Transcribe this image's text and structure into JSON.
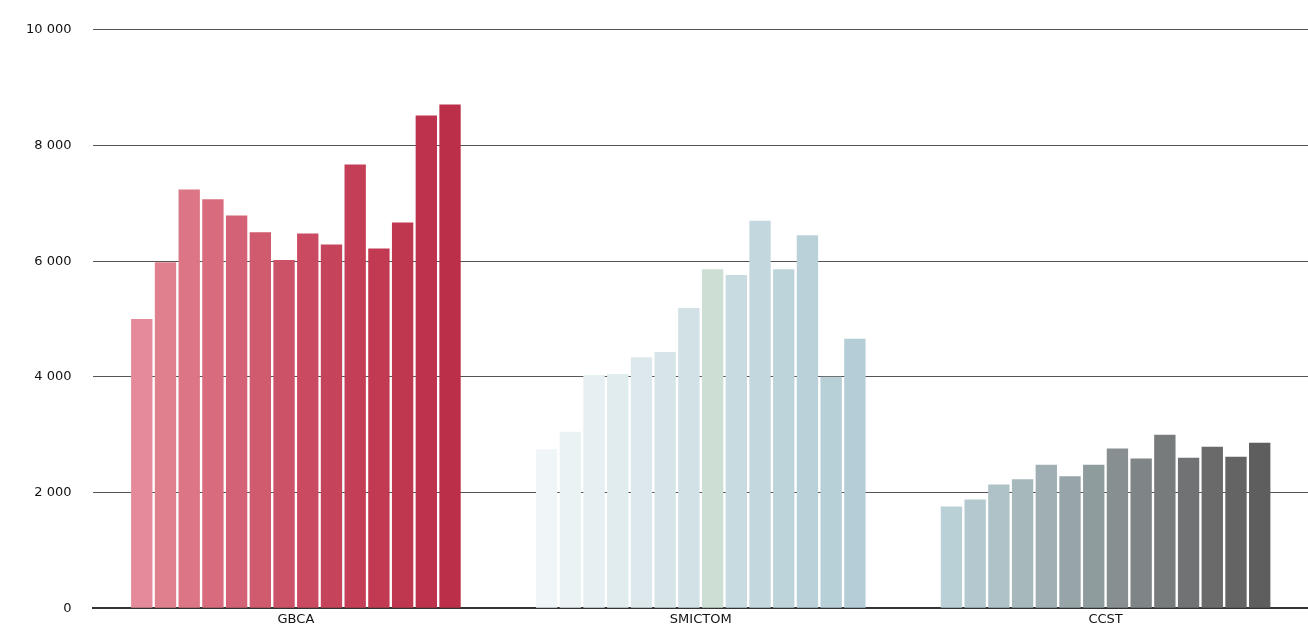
{
  "chart_data": {
    "type": "bar",
    "categories": [
      "GBCA",
      "SMICTOM",
      "CCST"
    ],
    "series": [
      {
        "values": [
          5000,
          2750,
          1760
        ],
        "colors": [
          "#e48a9a",
          "#f0f5f7",
          "#b8d0d6"
        ]
      },
      {
        "values": [
          5980,
          3050,
          1880
        ],
        "colors": [
          "#e0808f",
          "#ebf2f4",
          "#b3c9cf"
        ]
      },
      {
        "values": [
          7240,
          4030,
          2140
        ],
        "colors": [
          "#dc7686",
          "#e6eff2",
          "#aec2c8"
        ]
      },
      {
        "values": [
          7070,
          4050,
          2230
        ],
        "colors": [
          "#d86c7e",
          "#e1ecef",
          "#a7b8bd"
        ]
      },
      {
        "values": [
          6790,
          4340,
          2480
        ],
        "colors": [
          "#d46276",
          "#dce8ec",
          "#9fafb3"
        ]
      },
      {
        "values": [
          6500,
          4430,
          2280
        ],
        "colors": [
          "#d05a6e",
          "#d7e5e9",
          "#97a5a8"
        ]
      },
      {
        "values": [
          6020,
          5190,
          2480
        ],
        "colors": [
          "#cc5267",
          "#d2e1e6",
          "#8f9c9e"
        ]
      },
      {
        "values": [
          6480,
          5860,
          2760
        ],
        "colors": [
          "#c94a61",
          "#cdded4",
          "#878f90"
        ]
      },
      {
        "values": [
          6290,
          5760,
          2590
        ],
        "colors": [
          "#c6445b",
          "#c8dbe1",
          "#7f8586"
        ]
      },
      {
        "values": [
          7670,
          6700,
          3000
        ],
        "colors": [
          "#c33e56",
          "#c3d7de",
          "#777b7c"
        ]
      },
      {
        "values": [
          6220,
          5860,
          2600
        ],
        "colors": [
          "#c13a52",
          "#bed4db",
          "#707273"
        ]
      },
      {
        "values": [
          6670,
          6450,
          2790
        ],
        "colors": [
          "#bf364f",
          "#bad1d9",
          "#6a6a6a"
        ]
      },
      {
        "values": [
          8520,
          4000,
          2620
        ],
        "colors": [
          "#bd324c",
          "#b7cfd7",
          "#646464"
        ]
      },
      {
        "values": [
          8710,
          4660,
          2860
        ],
        "colors": [
          "#bb2f49",
          "#b4cdd6",
          "#5e5e5e"
        ]
      }
    ],
    "ylim": [
      0,
      10000
    ],
    "yticks": [
      {
        "value": 0,
        "label": "0"
      },
      {
        "value": 2000,
        "label": "2 000"
      },
      {
        "value": 4000,
        "label": "4 000"
      },
      {
        "value": 6000,
        "label": "6 000"
      },
      {
        "value": 8000,
        "label": "8 000"
      },
      {
        "value": 10000,
        "label": "10 000"
      }
    ],
    "grid": "y",
    "legend": false
  }
}
